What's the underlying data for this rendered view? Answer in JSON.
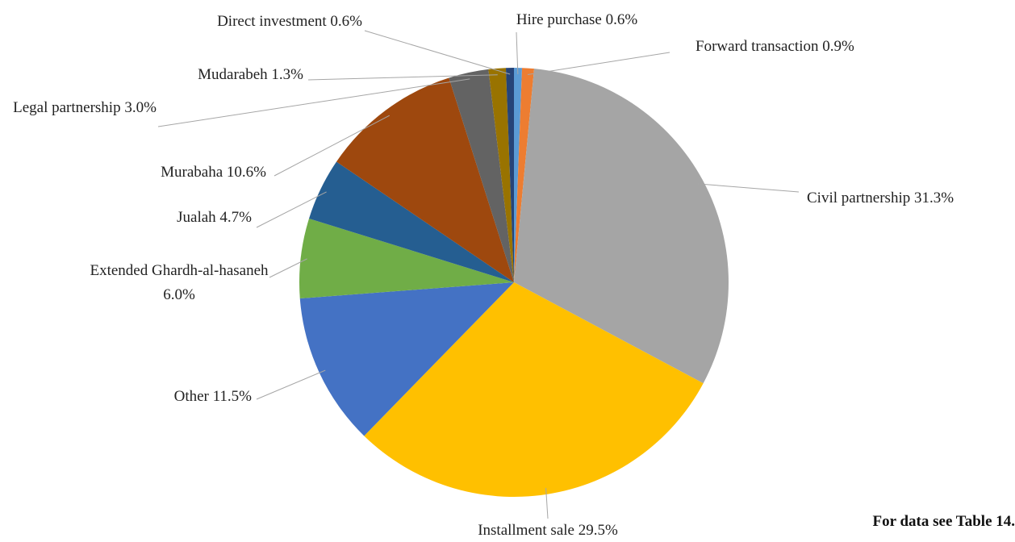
{
  "chart_data": {
    "type": "pie",
    "categories": [
      "Hire purchase",
      "Forward transaction",
      "Civil partnership",
      "Installment sale",
      "Other",
      "Extended Ghardh-al-hasaneh",
      "Jualah",
      "Murabaha",
      "Legal partnership",
      "Mudarabeh",
      "Direct investment"
    ],
    "values": [
      0.6,
      0.9,
      31.3,
      29.5,
      11.5,
      6.0,
      4.7,
      10.6,
      3.0,
      1.3,
      0.6
    ],
    "value_labels": [
      "0.6%",
      "0.9%",
      "31.3%",
      "29.5%",
      "11.5%",
      "6.0%",
      "4.7%",
      "10.6%",
      "3.0%",
      "1.3%",
      "0.6%"
    ],
    "colors": [
      "#5b9bd5",
      "#ed7d31",
      "#a5a5a5",
      "#ffc000",
      "#4472c4",
      "#70ad47",
      "#255e91",
      "#9e480e",
      "#636363",
      "#997300",
      "#264478"
    ],
    "note": "For data see Table 14."
  }
}
